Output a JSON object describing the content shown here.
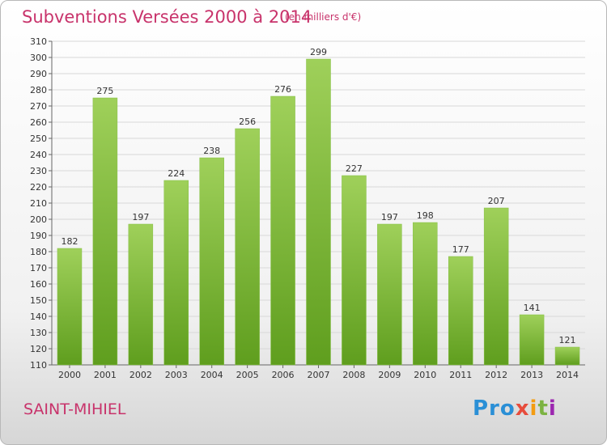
{
  "header": {
    "title": "Subventions Versées 2000 à 2014",
    "unit": "(en milliers d'€)"
  },
  "footer": {
    "city": "SAINT-MIHIEL",
    "logo_parts": [
      "Pro",
      "x",
      "i",
      "t",
      "i"
    ]
  },
  "colors": {
    "accent": "#c8336b",
    "bar_top": "#9fd05a",
    "bar_bottom": "#5f9e1e",
    "grid": "#d8d8d8"
  },
  "chart_data": {
    "type": "bar",
    "title": "Subventions Versées 2000 à 2014",
    "xlabel": "",
    "ylabel": "",
    "categories": [
      "2000",
      "2001",
      "2002",
      "2003",
      "2004",
      "2005",
      "2006",
      "2007",
      "2008",
      "2009",
      "2010",
      "2011",
      "2012",
      "2013",
      "2014"
    ],
    "values": [
      182,
      275,
      197,
      224,
      238,
      256,
      276,
      299,
      227,
      197,
      198,
      177,
      207,
      141,
      121
    ],
    "ylim": [
      110,
      310
    ],
    "ytick_step": 10,
    "grid": true,
    "legend": "none"
  }
}
